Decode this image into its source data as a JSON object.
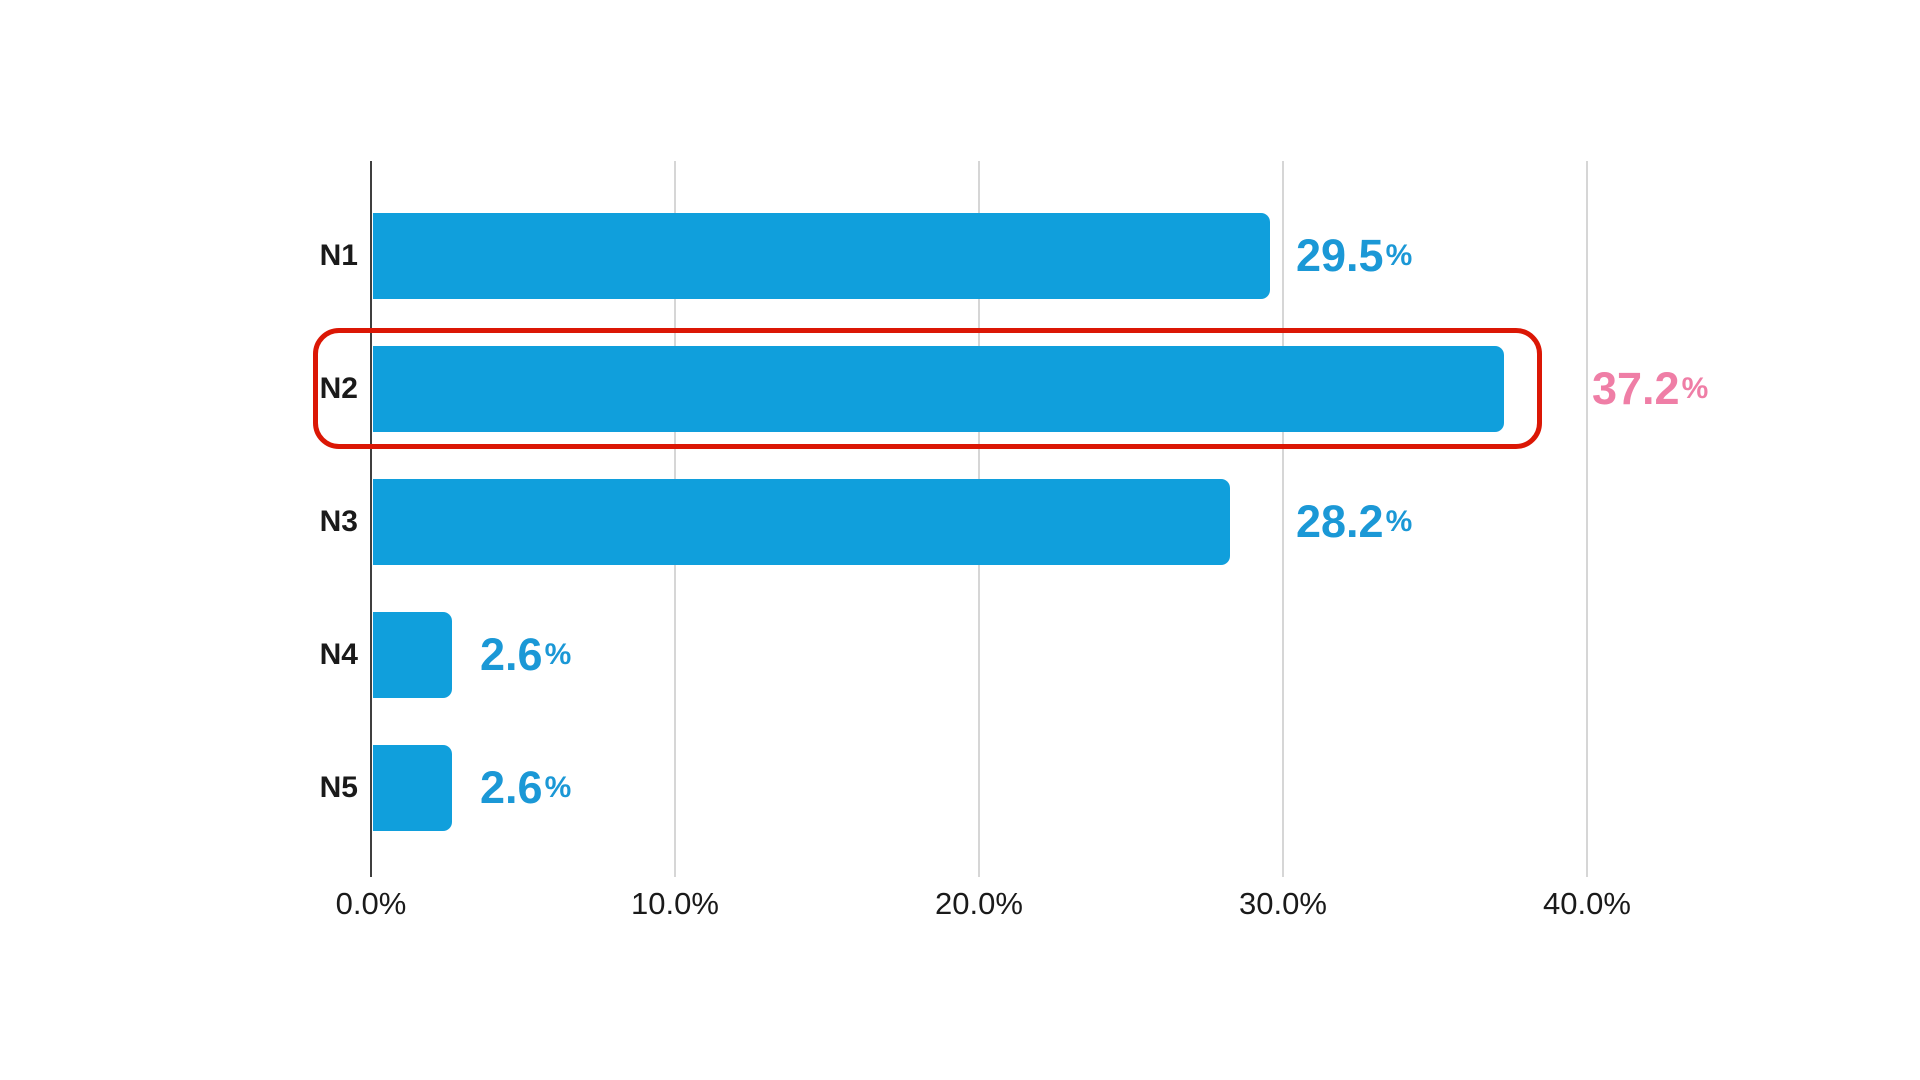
{
  "chart_data": {
    "type": "bar",
    "orientation": "horizontal",
    "title": "",
    "categories": [
      "N1",
      "N2",
      "N3",
      "N4",
      "N5"
    ],
    "values": [
      29.5,
      37.2,
      28.2,
      2.6,
      2.6
    ],
    "value_labels": [
      {
        "number": "29.5",
        "suffix": "%"
      },
      {
        "number": "37.2",
        "suffix": "%"
      },
      {
        "number": "28.2",
        "suffix": "%"
      },
      {
        "number": "2.6",
        "suffix": "%"
      },
      {
        "number": "2.6",
        "suffix": "%"
      }
    ],
    "x_tick_labels": [
      "0.0%",
      "10.0%",
      "20.0%",
      "30.0%",
      "40.0%"
    ],
    "x_tick_values": [
      0,
      10,
      20,
      30,
      40
    ],
    "xlim": [
      0,
      40
    ],
    "grid": "vertical-only",
    "legend": "none",
    "highlighted_index": 1,
    "highlight_style": "red-rounded-outline",
    "colors": {
      "bar": "#109FDC",
      "value_label": "#1B98D6",
      "highlight_value_label": "#EF7EA6",
      "highlight_ring": "#DB1705",
      "gridline": "#D6D6D6",
      "axis_line": "#3F3F3F",
      "tick_label": "#1A1A1A",
      "category_label": "#1A1A1A",
      "background": "#FFFFFF"
    }
  }
}
